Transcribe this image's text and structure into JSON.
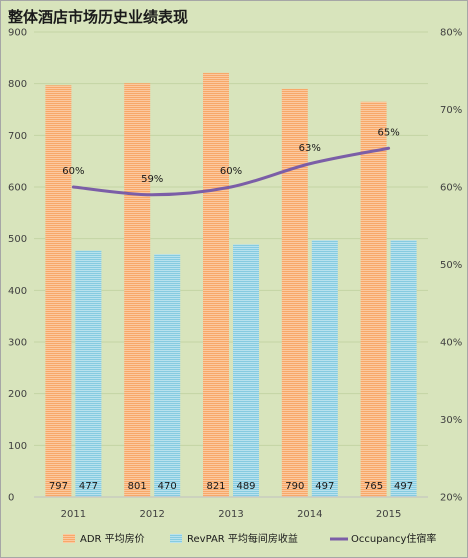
{
  "chart_data": {
    "type": "bar",
    "title": "整体酒店市场历史业绩表现",
    "categories": [
      "2011",
      "2012",
      "2013",
      "2014",
      "2015"
    ],
    "series": [
      {
        "name": "ADR 平均房价",
        "kind": "bar",
        "axis": "left",
        "color": "#f7a869",
        "values": [
          797,
          801,
          821,
          790,
          765
        ]
      },
      {
        "name": "RevPAR 平均每间房收益",
        "kind": "bar",
        "axis": "left",
        "color": "#86cbe0",
        "values": [
          477,
          470,
          489,
          497,
          497
        ]
      },
      {
        "name": "Occupancy住宿率",
        "kind": "line",
        "axis": "right",
        "color": "#7b5ea7",
        "values": [
          60,
          59,
          60,
          63,
          65
        ],
        "labels": [
          "60%",
          "59%",
          "60%",
          "63%",
          "65%"
        ]
      }
    ],
    "y_left": {
      "ylim": [
        0,
        900
      ],
      "ticks": [
        0,
        100,
        200,
        300,
        400,
        500,
        600,
        700,
        800,
        900
      ]
    },
    "y_right": {
      "ylim": [
        20,
        80
      ],
      "ticks": [
        "20%",
        "30%",
        "40%",
        "50%",
        "60%",
        "70%",
        "80%"
      ]
    },
    "grid": true,
    "legend": "bottom"
  }
}
